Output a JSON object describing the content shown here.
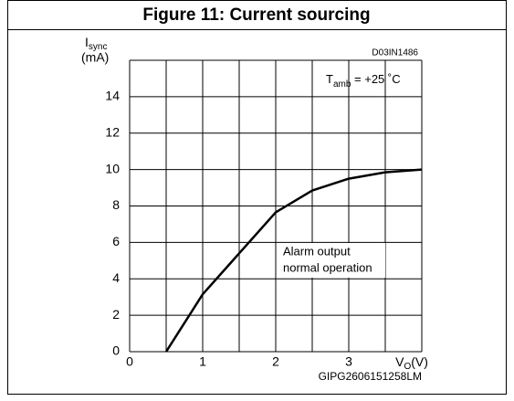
{
  "chart_data": {
    "type": "line",
    "title": "Figure 11: Current sourcing",
    "y_label": {
      "main": "I",
      "sub": "sync",
      "unit": "(mA)"
    },
    "x_label": {
      "main": "V",
      "sub": "O",
      "unit": "(V)"
    },
    "code": "D03IN1486",
    "condition": {
      "main": "T",
      "sub": "amb",
      "rest": " = +25 ˚C"
    },
    "annotation": [
      "Alarm output",
      "normal operation"
    ],
    "footer": "GIPG2606151258LM",
    "x": [
      0.5,
      1,
      1.5,
      2,
      2.5,
      3,
      3.5,
      4
    ],
    "series": [
      {
        "name": null,
        "color": "#000000",
        "values": [
          0,
          3.15,
          5.4,
          7.65,
          8.85,
          9.5,
          9.85,
          10
        ]
      }
    ],
    "xlim": [
      0,
      4
    ],
    "xticks": [
      0,
      {
        "value": 0.5,
        "label": null
      },
      1,
      {
        "value": 1.5,
        "label": null
      },
      2,
      {
        "value": 2.5,
        "label": null
      },
      3,
      {
        "value": 3.5,
        "label": null
      },
      {
        "value": 4,
        "label": null
      }
    ],
    "ylim": [
      0,
      16
    ],
    "yticks": [
      0,
      2,
      4,
      6,
      8,
      10,
      12,
      14,
      {
        "value": 16,
        "label": null
      }
    ],
    "grid": true
  }
}
